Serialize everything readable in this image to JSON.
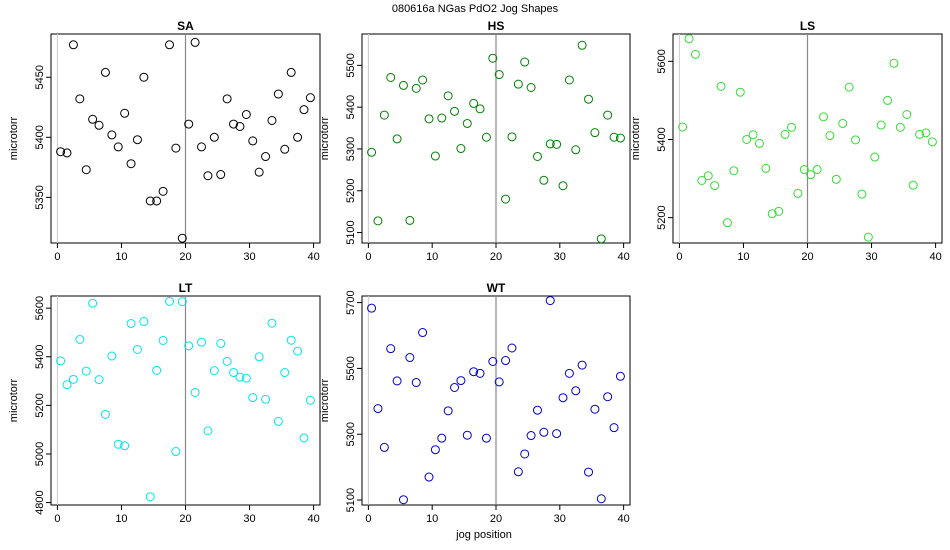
{
  "figure": {
    "title": "080616a   NGas PdO2 Jog Shapes",
    "xlabel": "jog position"
  },
  "chart_data": [
    {
      "type": "scatter",
      "title": "SA",
      "xlabel": "",
      "ylabel": "microtorr",
      "color": "#000000",
      "xlim": [
        -1,
        41
      ],
      "ylim": [
        5312,
        5486
      ],
      "xticks": [
        0,
        10,
        20,
        30,
        40
      ],
      "yticks": [
        5350,
        5400,
        5450
      ],
      "vline": 20,
      "x": [
        0.5,
        1.5,
        2.5,
        3.5,
        4.5,
        5.5,
        6.5,
        7.5,
        8.5,
        9.5,
        10.5,
        11.5,
        12.5,
        13.5,
        14.5,
        15.5,
        16.5,
        17.5,
        18.5,
        19.5,
        20.5,
        21.5,
        22.5,
        23.5,
        24.5,
        25.5,
        26.5,
        27.5,
        28.5,
        29.5,
        30.5,
        31.5,
        32.5,
        33.5,
        34.5,
        35.5,
        36.5,
        37.5,
        38.5,
        39.5
      ],
      "y": [
        5388,
        5387,
        5477,
        5432,
        5373,
        5415,
        5410,
        5454,
        5402,
        5392,
        5420,
        5378,
        5398,
        5450,
        5347,
        5347,
        5355,
        5477,
        5391,
        5316,
        5411,
        5479,
        5392,
        5368,
        5400,
        5369,
        5432,
        5411,
        5409,
        5419,
        5397,
        5371,
        5384,
        5414,
        5436,
        5390,
        5454,
        5400,
        5423,
        5433
      ]
    },
    {
      "type": "scatter",
      "title": "HS",
      "xlabel": "",
      "ylabel": "microtorr",
      "color": "#008000",
      "xlim": [
        -1,
        41
      ],
      "ylim": [
        5075,
        5575
      ],
      "xticks": [
        0,
        10,
        20,
        30,
        40
      ],
      "yticks": [
        5100,
        5200,
        5300,
        5400,
        5500
      ],
      "vline": 20,
      "x": [
        0.5,
        1.5,
        2.5,
        3.5,
        4.5,
        5.5,
        6.5,
        7.5,
        8.5,
        9.5,
        10.5,
        11.5,
        12.5,
        13.5,
        14.5,
        15.5,
        16.5,
        17.5,
        18.5,
        19.5,
        20.5,
        21.5,
        22.5,
        23.5,
        24.5,
        25.5,
        26.5,
        27.5,
        28.5,
        29.5,
        30.5,
        31.5,
        32.5,
        33.5,
        34.5,
        35.5,
        36.5,
        37.5,
        38.5,
        39.5
      ],
      "y": [
        5292,
        5128,
        5381,
        5471,
        5324,
        5452,
        5129,
        5445,
        5465,
        5372,
        5283,
        5374,
        5427,
        5390,
        5301,
        5361,
        5409,
        5396,
        5328,
        5517,
        5478,
        5180,
        5329,
        5455,
        5508,
        5447,
        5282,
        5225,
        5312,
        5311,
        5212,
        5465,
        5298,
        5548,
        5419,
        5339,
        5085,
        5381,
        5328,
        5326
      ]
    },
    {
      "type": "scatter",
      "title": "LS",
      "xlabel": "",
      "ylabel": "microtorr",
      "color": "#33dd33",
      "xlim": [
        -1,
        41
      ],
      "ylim": [
        5135,
        5670
      ],
      "xticks": [
        0,
        10,
        20,
        30,
        40
      ],
      "yticks": [
        5200,
        5400,
        5600
      ],
      "vline": 20,
      "x": [
        0.5,
        1.5,
        2.5,
        3.5,
        4.5,
        5.5,
        6.5,
        7.5,
        8.5,
        9.5,
        10.5,
        11.5,
        12.5,
        13.5,
        14.5,
        15.5,
        16.5,
        17.5,
        18.5,
        19.5,
        20.5,
        21.5,
        22.5,
        23.5,
        24.5,
        25.5,
        26.5,
        27.5,
        28.5,
        29.5,
        30.5,
        31.5,
        32.5,
        33.5,
        34.5,
        35.5,
        36.5,
        37.5,
        38.5,
        39.5
      ],
      "y": [
        5432,
        5658,
        5618,
        5295,
        5307,
        5282,
        5536,
        5187,
        5320,
        5521,
        5400,
        5412,
        5390,
        5326,
        5210,
        5216,
        5413,
        5431,
        5262,
        5323,
        5310,
        5323,
        5458,
        5410,
        5298,
        5441,
        5534,
        5399,
        5260,
        5150,
        5355,
        5437,
        5500,
        5595,
        5431,
        5464,
        5283,
        5413,
        5417,
        5394
      ]
    },
    {
      "type": "scatter",
      "title": "LT",
      "xlabel": "",
      "ylabel": "microtorr",
      "color": "#00e5ee",
      "xlim": [
        -1,
        41
      ],
      "ylim": [
        4790,
        5650
      ],
      "xticks": [
        0,
        10,
        20,
        30,
        40
      ],
      "yticks": [
        4800,
        5000,
        5200,
        5400,
        5600
      ],
      "vline": 20,
      "x": [
        0.5,
        1.5,
        2.5,
        3.5,
        4.5,
        5.5,
        6.5,
        7.5,
        8.5,
        9.5,
        10.5,
        11.5,
        12.5,
        13.5,
        14.5,
        15.5,
        16.5,
        17.5,
        18.5,
        19.5,
        20.5,
        21.5,
        22.5,
        23.5,
        24.5,
        25.5,
        26.5,
        27.5,
        28.5,
        29.5,
        30.5,
        31.5,
        32.5,
        33.5,
        34.5,
        35.5,
        36.5,
        37.5,
        38.5,
        39.5
      ],
      "y": [
        5383,
        5285,
        5307,
        5471,
        5341,
        5620,
        5306,
        5163,
        5403,
        5040,
        5034,
        5537,
        5430,
        5545,
        4824,
        5344,
        5467,
        5628,
        5010,
        5627,
        5445,
        5253,
        5460,
        5095,
        5343,
        5455,
        5381,
        5335,
        5316,
        5312,
        5232,
        5400,
        5225,
        5538,
        5134,
        5335,
        5468,
        5423,
        5066,
        5221
      ]
    },
    {
      "type": "scatter",
      "title": "WT",
      "xlabel": "jog position",
      "ylabel": "microtorr",
      "color": "#0000cd",
      "xlim": [
        -1,
        41
      ],
      "ylim": [
        5085,
        5720
      ],
      "xticks": [
        0,
        10,
        20,
        30,
        40
      ],
      "yticks": [
        5100,
        5300,
        5500,
        5700
      ],
      "vline": 20,
      "x": [
        0.5,
        1.5,
        2.5,
        3.5,
        4.5,
        5.5,
        6.5,
        7.5,
        8.5,
        9.5,
        10.5,
        11.5,
        12.5,
        13.5,
        14.5,
        15.5,
        16.5,
        17.5,
        18.5,
        19.5,
        20.5,
        21.5,
        22.5,
        23.5,
        24.5,
        25.5,
        26.5,
        27.5,
        28.5,
        29.5,
        30.5,
        31.5,
        32.5,
        33.5,
        34.5,
        35.5,
        36.5,
        37.5,
        38.5,
        39.5
      ],
      "y": [
        5683,
        5378,
        5260,
        5560,
        5462,
        5101,
        5533,
        5457,
        5609,
        5170,
        5253,
        5288,
        5371,
        5442,
        5463,
        5297,
        5490,
        5485,
        5288,
        5521,
        5459,
        5524,
        5562,
        5186,
        5240,
        5296,
        5373,
        5306,
        5706,
        5302,
        5411,
        5485,
        5432,
        5510,
        5185,
        5376,
        5104,
        5414,
        5320,
        5476
      ]
    }
  ]
}
